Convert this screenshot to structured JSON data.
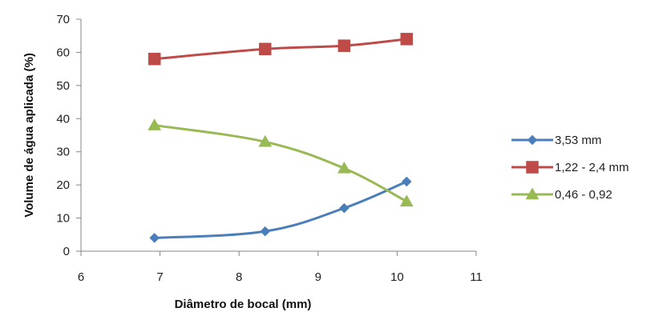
{
  "chart_data": {
    "type": "line",
    "xlabel": "Diâmetro de bocal (mm)",
    "ylabel": "Volume de água aplicada (%)",
    "xlim": [
      6,
      11
    ],
    "ylim": [
      0,
      70
    ],
    "xticks": [
      "6",
      "7",
      "8",
      "9",
      "10",
      "11"
    ],
    "yticks": [
      "0",
      "10",
      "20",
      "30",
      "40",
      "50",
      "60",
      "70"
    ],
    "grid": false,
    "legend_position": "right",
    "smooth": true,
    "series": [
      {
        "name": "3,53 mm",
        "color": "#4a7ebb",
        "marker": "diamond",
        "x": [
          6.93,
          8.33,
          9.33,
          10.12
        ],
        "y": [
          4,
          6,
          13,
          21
        ]
      },
      {
        "name": "1,22 - 2,4 mm",
        "color": "#be4b48",
        "marker": "square",
        "x": [
          6.93,
          8.33,
          9.33,
          10.12
        ],
        "y": [
          58,
          61,
          62,
          64
        ]
      },
      {
        "name": "0,46 - 0,92",
        "color": "#98b954",
        "marker": "triangle",
        "x": [
          6.93,
          8.33,
          9.33,
          10.12
        ],
        "y": [
          38,
          33,
          25,
          15
        ]
      }
    ]
  }
}
